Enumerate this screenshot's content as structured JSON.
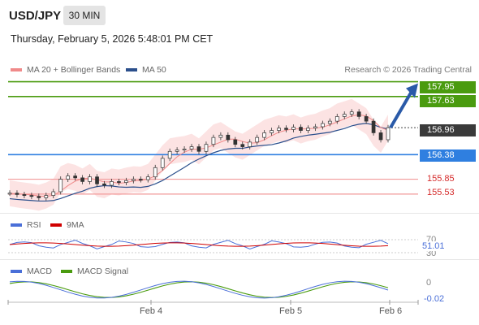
{
  "header": {
    "symbol": "USD/JPY",
    "timeframe": "30 MIN",
    "datetime": "Thursday, February 5, 2026 5:48:01 PM CET"
  },
  "legend": {
    "ma20": "MA 20 + Bollinger Bands",
    "ma50": "MA 50",
    "credit": "Research © 2026 Trading Central"
  },
  "colors": {
    "ma20": "#f08a8a",
    "ma50": "#2b4f8c",
    "green": "#4a9b0f",
    "blue": "#2f7fe0",
    "red": "#d52a2a",
    "rsi": "#4a6fd8",
    "rsi_ma": "#d00000",
    "macd": "#4a6fd8",
    "macd_signal": "#4a9b0f"
  },
  "levels": [
    {
      "price": 157.95,
      "label": "157.95",
      "kind": "resistance-target"
    },
    {
      "price": 157.63,
      "label": "157.63",
      "kind": "resistance"
    },
    {
      "price": 156.96,
      "label": "156.96",
      "kind": "current"
    },
    {
      "price": 156.38,
      "label": "156.38",
      "kind": "pivot"
    },
    {
      "price": 155.85,
      "label": "155.85",
      "kind": "support"
    },
    {
      "price": 155.53,
      "label": "155.53",
      "kind": "support"
    }
  ],
  "rsi": {
    "label": "RSI",
    "ma_label": "9MA",
    "upper": "70",
    "lower": "30",
    "value": "51.01"
  },
  "macd": {
    "label": "MACD",
    "signal_label": "MACD Signal",
    "zero": "0",
    "value": "-0.02"
  },
  "xaxis": [
    "Feb 4",
    "Feb 5",
    "Feb 6"
  ],
  "chart_data": {
    "type": "line",
    "title": "",
    "y_min": 155.3,
    "y_max": 158.1,
    "close": [
      155.55,
      155.52,
      155.5,
      155.48,
      155.45,
      155.5,
      155.58,
      155.85,
      155.92,
      155.88,
      155.8,
      155.9,
      155.75,
      155.72,
      155.8,
      155.78,
      155.82,
      155.85,
      155.84,
      155.9,
      156.1,
      156.3,
      156.45,
      156.48,
      156.5,
      156.55,
      156.45,
      156.6,
      156.75,
      156.8,
      156.7,
      156.6,
      156.55,
      156.65,
      156.75,
      156.85,
      156.9,
      156.95,
      156.92,
      156.97,
      156.9,
      156.95,
      156.98,
      157.05,
      157.1,
      157.2,
      157.25,
      157.3,
      157.2,
      157.1,
      156.85,
      156.7,
      156.96
    ]
  }
}
